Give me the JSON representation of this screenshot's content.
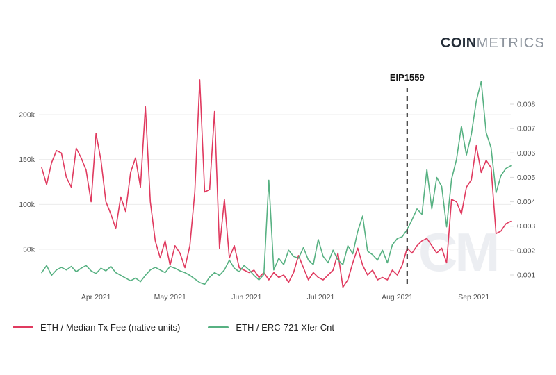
{
  "logo": {
    "bold": "COIN",
    "light": "METRICS"
  },
  "colors": {
    "fee_line": "#e03a5f",
    "xfer_line": "#57b182",
    "grid": "#ececec",
    "axis_text": "#4d4d4d",
    "annotation_line": "#3a3a3a",
    "watermark": "#eceef2",
    "background": "#ffffff"
  },
  "watermark_text": "CM",
  "annotation": {
    "label": "EIP1559",
    "date": "2021-08-05"
  },
  "legend": [
    {
      "label": "ETH / Median Tx Fee (native units)",
      "color": "#e03a5f"
    },
    {
      "label": "ETH / ERC-721 Xfer Cnt",
      "color": "#57b182"
    }
  ],
  "chart_data": {
    "type": "line",
    "title": "",
    "start_date": "2021-03-10",
    "step_days": 2,
    "x_ticks": [
      {
        "label": "Apr 2021",
        "date": "2021-04-01"
      },
      {
        "label": "May 2021",
        "date": "2021-05-01"
      },
      {
        "label": "Jun 2021",
        "date": "2021-06-01"
      },
      {
        "label": "Jul 2021",
        "date": "2021-07-01"
      },
      {
        "label": "Aug 2021",
        "date": "2021-08-01"
      },
      {
        "label": "Sep 2021",
        "date": "2021-09-01"
      }
    ],
    "left_axis": {
      "ticks": [
        50000,
        100000,
        150000,
        200000
      ],
      "tick_labels": [
        "50k",
        "100k",
        "150k",
        "200k"
      ],
      "range": [
        0,
        250000
      ],
      "series": "ETH / ERC-721 Xfer Cnt"
    },
    "right_axis": {
      "ticks": [
        0.001,
        0.002,
        0.003,
        0.004,
        0.005,
        0.006,
        0.007,
        0.008
      ],
      "tick_labels": [
        "0.001",
        "0.002",
        "0.003",
        "0.004",
        "0.005",
        "0.006",
        "0.007",
        "0.008"
      ],
      "range": [
        0.0004,
        0.0095
      ],
      "series": "ETH / Median Tx Fee (native units)"
    },
    "grid": "horizontal",
    "legend_position": "bottom-left",
    "series": [
      {
        "name": "ETH / Median Tx Fee (native units)",
        "axis": "right",
        "color": "#e03a5f",
        "values": [
          0.0054,
          0.0047,
          0.0056,
          0.0061,
          0.006,
          0.005,
          0.0046,
          0.0062,
          0.0058,
          0.0053,
          0.004,
          0.0068,
          0.0057,
          0.004,
          0.0035,
          0.0029,
          0.0042,
          0.0036,
          0.0052,
          0.0058,
          0.0046,
          0.0079,
          0.004,
          0.0024,
          0.0017,
          0.0024,
          0.0014,
          0.0022,
          0.0019,
          0.0013,
          0.0022,
          0.0044,
          0.009,
          0.0044,
          0.0045,
          0.0077,
          0.0021,
          0.0041,
          0.0017,
          0.0022,
          0.0013,
          0.0012,
          0.0011,
          0.0012,
          0.0009,
          0.0011,
          0.0008,
          0.0011,
          0.0009,
          0.001,
          0.0007,
          0.0011,
          0.0018,
          0.0013,
          0.0008,
          0.0011,
          0.0009,
          0.0008,
          0.001,
          0.0012,
          0.0019,
          0.0005,
          0.0008,
          0.0015,
          0.0021,
          0.0014,
          0.001,
          0.0012,
          0.0008,
          0.0009,
          0.0008,
          0.0012,
          0.001,
          0.0014,
          0.0021,
          0.0019,
          0.0022,
          0.0024,
          0.0025,
          0.0022,
          0.0019,
          0.0021,
          0.0015,
          0.0041,
          0.004,
          0.0035,
          0.0046,
          0.0049,
          0.0063,
          0.0052,
          0.0057,
          0.0054,
          0.0027,
          0.0028,
          0.0031,
          0.0032
        ]
      },
      {
        "name": "ETH / ERC-721 Xfer Cnt",
        "axis": "left",
        "color": "#57b182",
        "values": [
          24000,
          32000,
          21000,
          27000,
          30000,
          27000,
          31000,
          25000,
          29000,
          32000,
          26000,
          23000,
          29000,
          26000,
          31000,
          24000,
          21000,
          18000,
          15000,
          18000,
          14000,
          21000,
          27000,
          30000,
          27000,
          24000,
          31000,
          29000,
          26000,
          24000,
          21000,
          17000,
          13000,
          11000,
          19000,
          24000,
          21000,
          27000,
          38000,
          29000,
          25000,
          32000,
          27000,
          21000,
          16000,
          22000,
          127000,
          27000,
          40000,
          33000,
          49000,
          42000,
          40000,
          52000,
          38000,
          33000,
          61000,
          42000,
          35000,
          49000,
          38000,
          33000,
          54000,
          45000,
          70000,
          87000,
          48000,
          44000,
          38000,
          49000,
          35000,
          55000,
          62000,
          64000,
          72000,
          83000,
          95000,
          89000,
          139000,
          95000,
          130000,
          120000,
          75000,
          128000,
          150000,
          187000,
          155000,
          178000,
          215000,
          237000,
          180000,
          163000,
          113000,
          132000,
          140000,
          143000
        ]
      }
    ]
  }
}
